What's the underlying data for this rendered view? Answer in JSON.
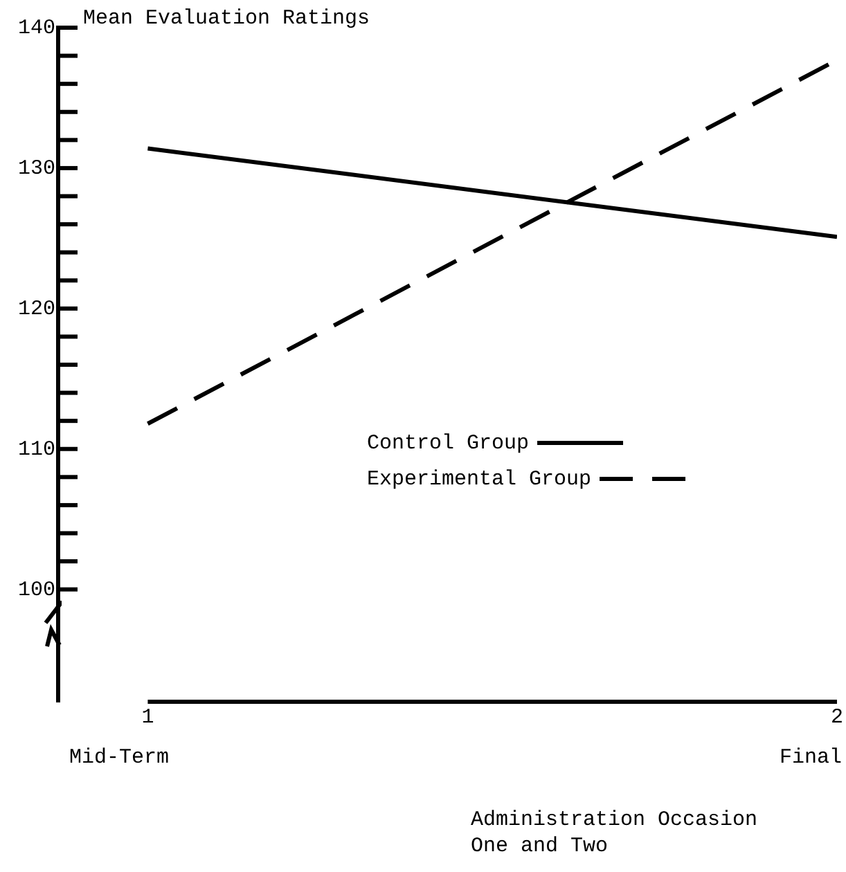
{
  "chart_data": {
    "type": "line",
    "title": "Mean Evaluation Ratings",
    "xlabel": "Administration Occasion One and Two",
    "x": [
      1,
      2
    ],
    "xlim": [
      0.87,
      2
    ],
    "xticks": [
      1,
      2
    ],
    "ylim": [
      92,
      140
    ],
    "yticks": [
      100,
      {
        "value": 102,
        "label": null
      },
      {
        "value": 104,
        "label": null
      },
      {
        "value": 106,
        "label": null
      },
      {
        "value": 108,
        "label": null
      },
      110,
      {
        "value": 112,
        "label": null
      },
      {
        "value": 114,
        "label": null
      },
      {
        "value": 116,
        "label": null
      },
      {
        "value": 118,
        "label": null
      },
      120,
      {
        "value": 122,
        "label": null
      },
      {
        "value": 124,
        "label": null
      },
      {
        "value": 126,
        "label": null
      },
      {
        "value": 128,
        "label": null
      },
      130,
      {
        "value": 132,
        "label": null
      },
      {
        "value": 134,
        "label": null
      },
      {
        "value": 136,
        "label": null
      },
      {
        "value": 138,
        "label": null
      },
      140
    ],
    "series": [
      {
        "name": "Control Group",
        "color": "#000000",
        "line_style": "solid",
        "values": [
          131.4,
          125.1
        ]
      },
      {
        "name": "Experimental Group",
        "color": "#000000",
        "line_style": "dashed",
        "values": [
          111.8,
          137.7
        ]
      }
    ],
    "annotations": [
      "Mid-Term",
      "Final"
    ],
    "legend": "center",
    "grid": false,
    "marker": "none"
  }
}
